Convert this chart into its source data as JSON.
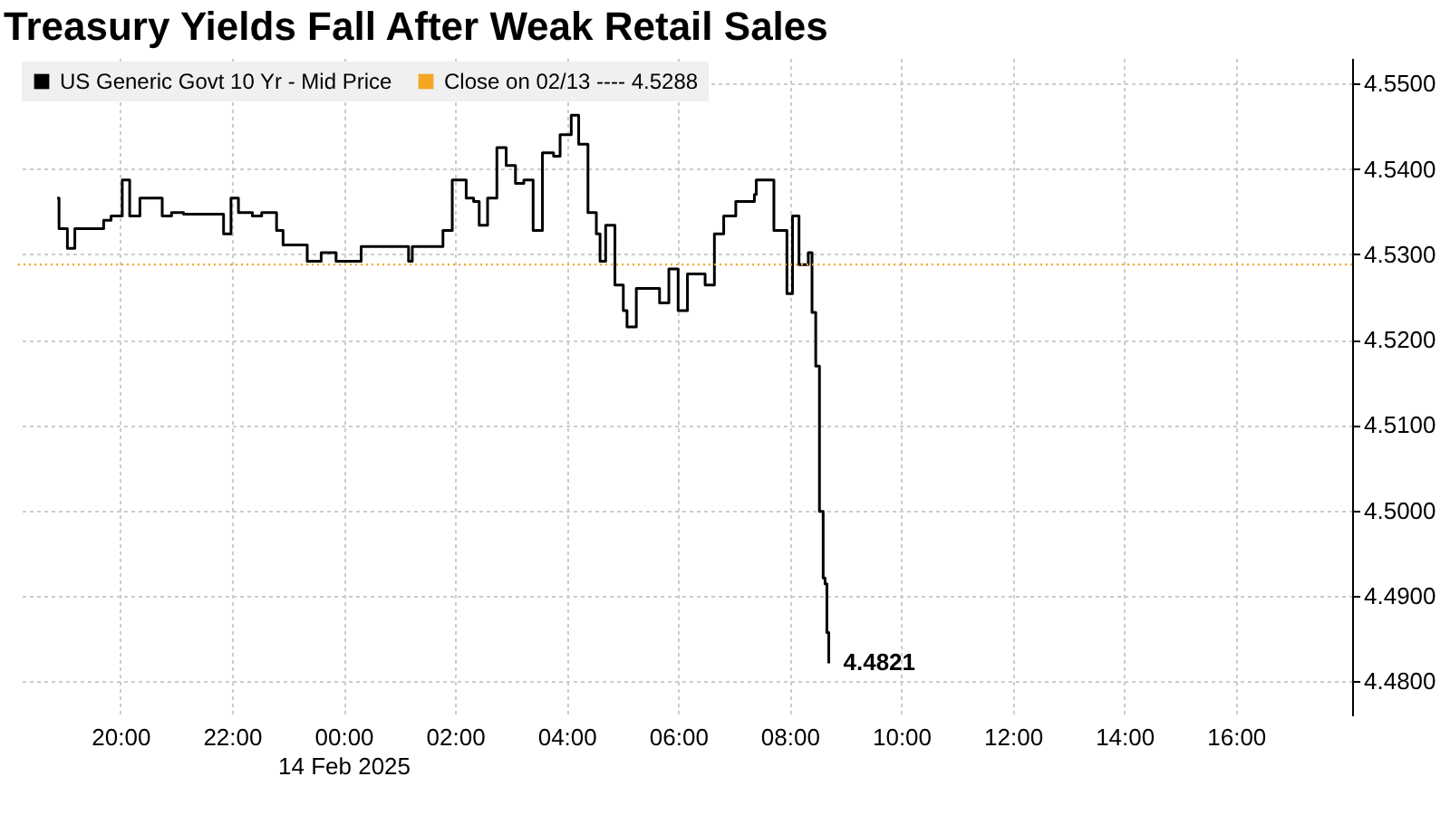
{
  "chart_data": {
    "type": "step",
    "title": "Treasury Yields Fall After Weak Retail Sales",
    "x": [
      "2025-02-13T18:52",
      "2025-02-13T18:54",
      "2025-02-13T19:03",
      "2025-02-13T19:11",
      "2025-02-13T19:37",
      "2025-02-13T19:42",
      "2025-02-13T19:50",
      "2025-02-13T20:02",
      "2025-02-13T20:10",
      "2025-02-13T20:21",
      "2025-02-13T20:35",
      "2025-02-13T20:45",
      "2025-02-13T20:55",
      "2025-02-13T21:08",
      "2025-02-13T21:43",
      "2025-02-13T21:51",
      "2025-02-13T21:59",
      "2025-02-13T22:07",
      "2025-02-13T22:22",
      "2025-02-13T22:32",
      "2025-02-13T22:48",
      "2025-02-13T22:55",
      "2025-02-13T23:21",
      "2025-02-13T23:36",
      "2025-02-13T23:52",
      "2025-02-14T00:19",
      "2025-02-14T00:29",
      "2025-02-14T01:10",
      "2025-02-14T01:14",
      "2025-02-14T01:37",
      "2025-02-14T01:47",
      "2025-02-14T01:57",
      "2025-02-14T02:12",
      "2025-02-14T02:20",
      "2025-02-14T02:26",
      "2025-02-14T02:35",
      "2025-02-14T02:45",
      "2025-02-14T02:55",
      "2025-02-14T03:05",
      "2025-02-14T03:14",
      "2025-02-14T03:24",
      "2025-02-14T03:34",
      "2025-02-14T03:46",
      "2025-02-14T03:53",
      "2025-02-14T04:05",
      "2025-02-14T04:13",
      "2025-02-14T04:23",
      "2025-02-14T04:32",
      "2025-02-14T04:36",
      "2025-02-14T04:42",
      "2025-02-14T04:52",
      "2025-02-14T05:01",
      "2025-02-14T05:05",
      "2025-02-14T05:15",
      "2025-02-14T05:31",
      "2025-02-14T05:40",
      "2025-02-14T05:50",
      "2025-02-14T06:00",
      "2025-02-14T06:10",
      "2025-02-14T06:29",
      "2025-02-14T06:39",
      "2025-02-14T06:49",
      "2025-02-14T07:02",
      "2025-02-14T07:22",
      "2025-02-14T07:24",
      "2025-02-14T07:43",
      "2025-02-14T07:57",
      "2025-02-14T08:03",
      "2025-02-14T08:10",
      "2025-02-14T08:20",
      "2025-02-14T08:24",
      "2025-02-14T08:28",
      "2025-02-14T08:32",
      "2025-02-14T08:36",
      "2025-02-14T08:38",
      "2025-02-14T08:40",
      "2025-02-14T08:42"
    ],
    "series": [
      {
        "name": "US Generic Govt 10 Yr - Mid Price",
        "color": "#000000",
        "values": [
          4.5366,
          4.533,
          4.5307,
          4.533,
          4.533,
          4.534,
          4.5345,
          4.5387,
          4.5345,
          4.5366,
          4.5366,
          4.5345,
          4.5349,
          4.5347,
          4.5347,
          4.5324,
          4.5366,
          4.5349,
          4.5345,
          4.5349,
          4.5328,
          4.5311,
          4.5292,
          4.5302,
          4.5292,
          4.5309,
          4.5309,
          4.5292,
          4.5309,
          4.5309,
          4.5328,
          4.5387,
          4.5366,
          4.5362,
          4.5334,
          4.5366,
          4.5425,
          4.5404,
          4.5383,
          4.5387,
          4.5328,
          4.5419,
          4.5415,
          4.544,
          4.5463,
          4.5429,
          4.5349,
          4.5324,
          4.5292,
          4.5334,
          4.5264,
          4.5234,
          4.5215,
          4.526,
          4.526,
          4.5243,
          4.5283,
          4.5234,
          4.5277,
          4.5264,
          4.5324,
          4.5345,
          4.5362,
          4.537,
          4.5387,
          4.5328,
          4.5254,
          4.5345,
          4.5288,
          4.5302,
          4.5232,
          4.5169,
          4.4999,
          4.4921,
          4.4914,
          4.4857,
          4.4821
        ]
      }
    ],
    "ref_lines": [
      {
        "axis": "y",
        "value": 4.5288,
        "label": "Close on 02/13 ---- 4.5288",
        "color": "#f5a623",
        "line_style": "dotted"
      }
    ],
    "annotations": [
      {
        "text": "4.4821",
        "x": "2025-02-14T08:42",
        "y": 4.4821
      }
    ],
    "xlim": [
      "2025-02-13T18:10",
      "2025-02-14T18:05"
    ],
    "xticks": [
      {
        "value": "2025-02-13T20:00",
        "label": "20:00"
      },
      {
        "value": "2025-02-13T22:00",
        "label": "22:00"
      },
      {
        "value": "2025-02-14T00:00",
        "label": "00:00\n14 Feb 2025"
      },
      {
        "value": "2025-02-14T02:00",
        "label": "02:00"
      },
      {
        "value": "2025-02-14T04:00",
        "label": "04:00"
      },
      {
        "value": "2025-02-14T06:00",
        "label": "06:00"
      },
      {
        "value": "2025-02-14T08:00",
        "label": "08:00"
      },
      {
        "value": "2025-02-14T10:00",
        "label": "10:00"
      },
      {
        "value": "2025-02-14T12:00",
        "label": "12:00"
      },
      {
        "value": "2025-02-14T14:00",
        "label": "14:00"
      },
      {
        "value": "2025-02-14T16:00",
        "label": "16:00"
      }
    ],
    "ylim": [
      4.476,
      4.553
    ],
    "yticks": [
      {
        "value": 4.48,
        "label": "4.4800"
      },
      {
        "value": 4.49,
        "label": "4.4900"
      },
      {
        "value": 4.5,
        "label": "4.5000"
      },
      {
        "value": 4.51,
        "label": "4.5100"
      },
      {
        "value": 4.52,
        "label": "4.5200"
      },
      {
        "value": 4.53,
        "label": "4.5300"
      },
      {
        "value": 4.54,
        "label": "4.5400"
      },
      {
        "value": 4.55,
        "label": "4.5500"
      }
    ],
    "grid": true,
    "legend": "top left",
    "marker": "none",
    "line_style": "solid"
  }
}
